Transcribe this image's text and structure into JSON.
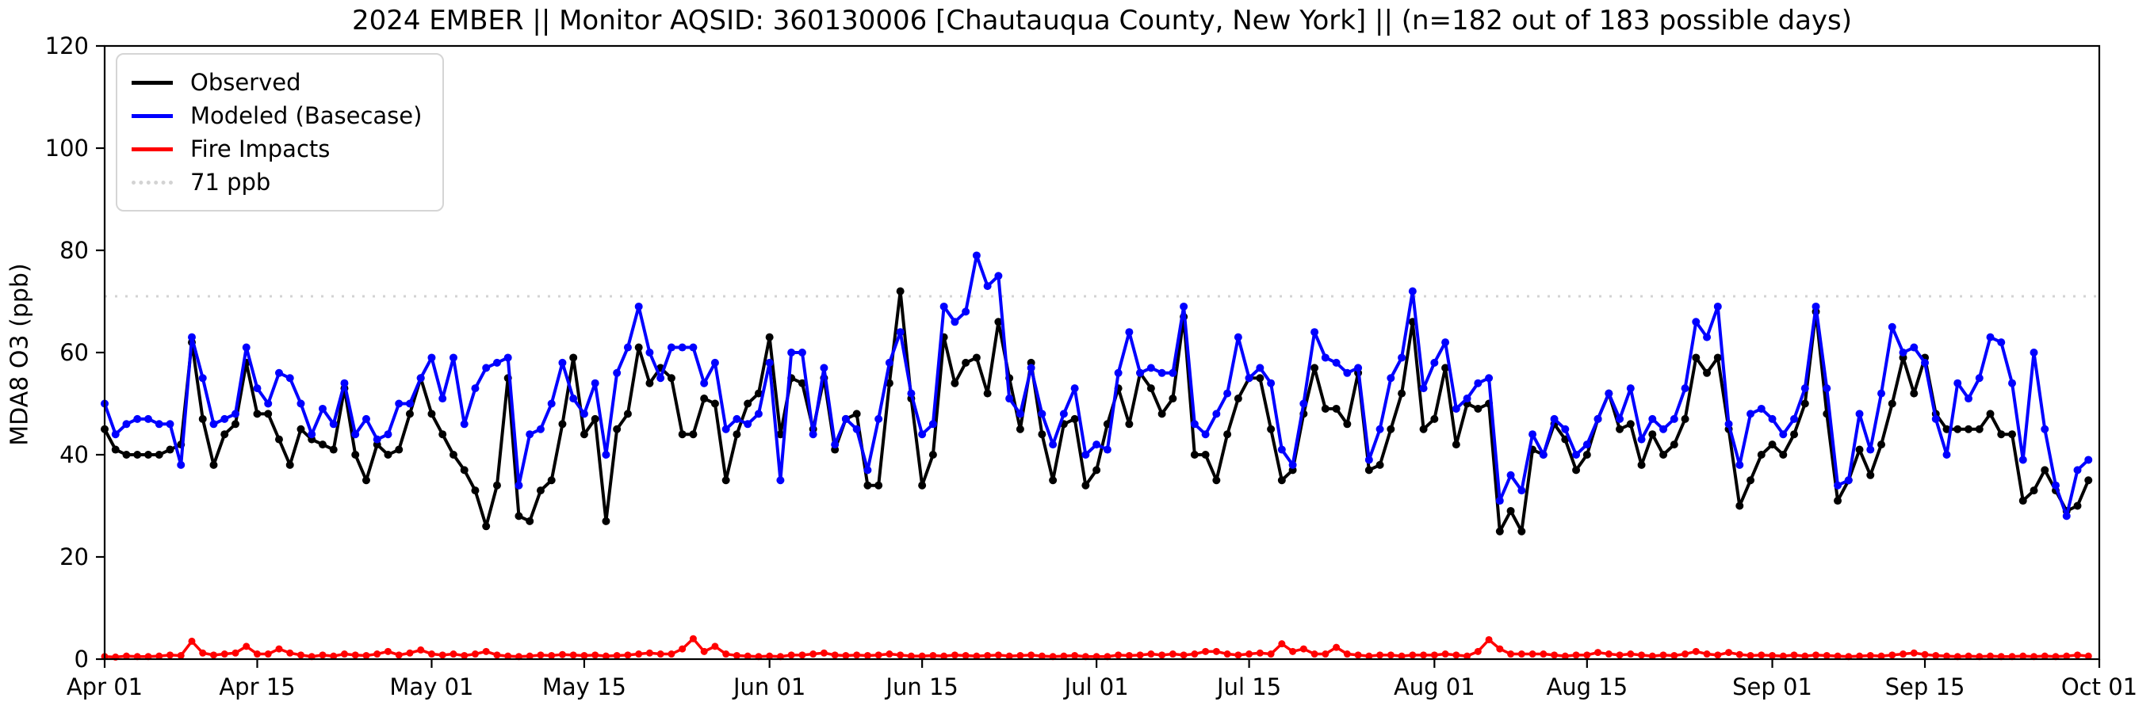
{
  "title": "2024 EMBER || Monitor AQSID: 360130006 [Chautauqua County, New York] || (n=182 out of 183 possible days)",
  "chart_data": {
    "type": "line",
    "title": "2024 EMBER || Monitor AQSID: 360130006 [Chautauqua County, New York] || (n=182 out of 183 possible days)",
    "xlabel": "",
    "ylabel": "MDA8 O3 (ppb)",
    "ylim": [
      0,
      120
    ],
    "y_ticks": [
      0,
      20,
      40,
      60,
      80,
      100,
      120
    ],
    "x_tick_labels": [
      "Apr 01",
      "Apr 15",
      "May 01",
      "May 15",
      "Jun 01",
      "Jun 15",
      "Jul 01",
      "Jul 15",
      "Aug 01",
      "Aug 15",
      "Sep 01",
      "Sep 15",
      "Oct 01"
    ],
    "x_tick_days": [
      0,
      14,
      30,
      44,
      61,
      75,
      91,
      105,
      122,
      136,
      153,
      167,
      183
    ],
    "n_days": 183,
    "date_range": [
      "Apr 01",
      "Sep 30"
    ],
    "grid": false,
    "legend_position": "upper-left",
    "threshold": {
      "value": 71,
      "label": "71 ppb",
      "color": "#d3d3d3"
    },
    "series": [
      {
        "name": "Observed",
        "color": "#000000",
        "values": [
          45,
          41,
          40,
          40,
          40,
          40,
          41,
          42,
          62,
          47,
          38,
          44,
          46,
          58,
          48,
          48,
          43,
          38,
          45,
          43,
          42,
          41,
          53,
          40,
          35,
          42,
          40,
          41,
          48,
          55,
          48,
          44,
          40,
          37,
          33,
          26,
          34,
          55,
          28,
          27,
          33,
          35,
          46,
          59,
          44,
          47,
          27,
          45,
          48,
          61,
          54,
          57,
          55,
          44,
          44,
          51,
          50,
          35,
          44,
          50,
          52,
          63,
          44,
          55,
          54,
          45,
          55,
          41,
          47,
          48,
          34,
          34,
          54,
          72,
          51,
          34,
          40,
          63,
          54,
          58,
          59,
          52,
          66,
          55,
          45,
          58,
          44,
          35,
          46,
          47,
          34,
          37,
          46,
          53,
          46,
          56,
          53,
          48,
          51,
          67,
          40,
          40,
          35,
          44,
          51,
          55,
          55,
          45,
          35,
          37,
          48,
          57,
          49,
          49,
          46,
          56,
          37,
          38,
          45,
          52,
          66,
          45,
          47,
          57,
          42,
          50,
          49,
          50,
          25,
          29,
          25,
          41,
          40,
          46,
          43,
          37,
          40,
          47,
          52,
          45,
          46,
          38,
          44,
          40,
          42,
          47,
          59,
          56,
          59,
          45,
          30,
          35,
          40,
          42,
          40,
          44,
          50,
          68,
          48,
          31,
          35,
          41,
          36,
          42,
          50,
          59,
          52,
          59,
          48,
          45,
          45,
          45,
          45,
          48,
          44,
          44,
          31,
          33,
          37,
          33,
          29,
          30,
          35
        ]
      },
      {
        "name": "Modeled (Basecase)",
        "color": "#0000ff",
        "values": [
          50,
          44,
          46,
          47,
          47,
          46,
          46,
          38,
          63,
          55,
          46,
          47,
          48,
          61,
          53,
          50,
          56,
          55,
          50,
          44,
          49,
          46,
          54,
          44,
          47,
          43,
          44,
          50,
          50,
          55,
          59,
          51,
          59,
          46,
          53,
          57,
          58,
          59,
          34,
          44,
          45,
          50,
          58,
          51,
          48,
          54,
          40,
          56,
          61,
          69,
          60,
          55,
          61,
          61,
          61,
          54,
          58,
          45,
          47,
          46,
          48,
          58,
          35,
          60,
          60,
          44,
          57,
          42,
          47,
          45,
          37,
          47,
          58,
          64,
          52,
          44,
          46,
          69,
          66,
          68,
          79,
          73,
          75,
          51,
          48,
          57,
          48,
          42,
          48,
          53,
          40,
          42,
          41,
          56,
          64,
          56,
          57,
          56,
          56,
          69,
          46,
          44,
          48,
          52,
          63,
          55,
          57,
          54,
          41,
          38,
          50,
          64,
          59,
          58,
          56,
          57,
          39,
          45,
          55,
          59,
          72,
          53,
          58,
          62,
          49,
          51,
          54,
          55,
          31,
          36,
          33,
          44,
          40,
          47,
          45,
          40,
          42,
          47,
          52,
          47,
          53,
          43,
          47,
          45,
          47,
          53,
          66,
          63,
          69,
          46,
          38,
          48,
          49,
          47,
          44,
          47,
          53,
          69,
          53,
          34,
          35,
          48,
          41,
          52,
          65,
          60,
          61,
          58,
          47,
          40,
          54,
          51,
          55,
          63,
          62,
          54,
          39,
          60,
          45,
          34,
          28,
          37,
          39
        ]
      },
      {
        "name": "Fire Impacts",
        "color": "#ff0000",
        "values": [
          0.5,
          0.4,
          0.6,
          0.5,
          0.5,
          0.6,
          0.8,
          0.7,
          3.5,
          1.2,
          0.8,
          1.0,
          1.2,
          2.5,
          1.0,
          1.0,
          2.0,
          1.2,
          0.8,
          0.5,
          0.8,
          0.6,
          1.0,
          0.8,
          0.7,
          1.0,
          1.5,
          0.8,
          1.2,
          1.8,
          1.0,
          0.8,
          1.0,
          0.7,
          1.0,
          1.5,
          0.8,
          0.6,
          0.5,
          0.6,
          0.8,
          0.7,
          0.9,
          0.8,
          0.7,
          0.8,
          0.6,
          0.7,
          0.8,
          1.0,
          1.2,
          1.0,
          1.0,
          2.0,
          4.0,
          1.5,
          2.5,
          1.0,
          0.7,
          0.6,
          0.5,
          0.6,
          0.5,
          0.8,
          0.8,
          1.0,
          1.2,
          0.8,
          0.7,
          0.8,
          0.7,
          0.8,
          1.0,
          0.8,
          0.6,
          0.6,
          0.7,
          0.6,
          0.8,
          0.7,
          0.6,
          0.7,
          0.8,
          0.6,
          0.7,
          0.8,
          0.6,
          0.5,
          0.6,
          0.7,
          0.5,
          0.5,
          0.5,
          0.8,
          0.7,
          0.8,
          1.0,
          0.8,
          1.0,
          0.8,
          1.0,
          1.5,
          1.5,
          1.0,
          0.8,
          1.0,
          1.2,
          1.0,
          3.0,
          1.5,
          2.0,
          1.0,
          1.0,
          2.3,
          1.0,
          0.8,
          0.6,
          0.8,
          0.8,
          0.6,
          0.8,
          0.8,
          0.8,
          1.0,
          0.8,
          0.6,
          1.5,
          3.8,
          2.0,
          1.0,
          1.0,
          1.0,
          1.0,
          0.8,
          0.6,
          0.8,
          0.8,
          1.3,
          1.0,
          0.8,
          1.0,
          0.8,
          0.6,
          0.8,
          0.7,
          1.0,
          1.5,
          1.0,
          0.8,
          1.3,
          0.9,
          0.7,
          0.8,
          0.7,
          0.6,
          0.8,
          0.6,
          0.8,
          0.7,
          0.6,
          0.5,
          0.6,
          0.7,
          0.6,
          0.8,
          1.0,
          1.2,
          0.9,
          0.7,
          0.6,
          0.5,
          0.6,
          0.5,
          0.6,
          0.5,
          0.5,
          0.6,
          0.5,
          0.6,
          0.5,
          0.6,
          0.8,
          0.6
        ]
      }
    ]
  }
}
